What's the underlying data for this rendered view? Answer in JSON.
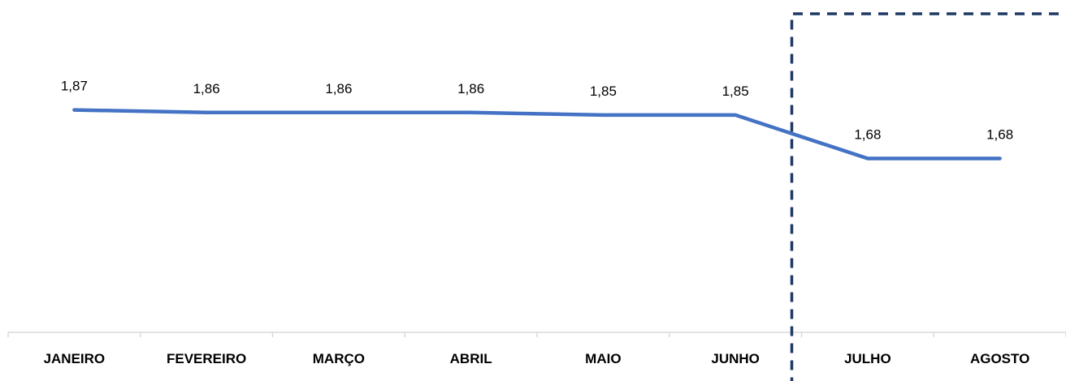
{
  "chart_data": {
    "type": "line",
    "title": "",
    "xlabel": "",
    "ylabel": "",
    "categories": [
      "JANEIRO",
      "FEVEREIRO",
      "MARÇO",
      "ABRIL",
      "MAIO",
      "JUNHO",
      "JULHO",
      "AGOSTO"
    ],
    "series": [
      {
        "values": [
          1.87,
          1.86,
          1.86,
          1.86,
          1.85,
          1.85,
          1.68,
          1.68
        ],
        "labels": [
          "1,87",
          "1,86",
          "1,86",
          "1,86",
          "1,85",
          "1,85",
          "1,68",
          "1,68"
        ]
      }
    ],
    "ylim": [
      1.0,
      2.3
    ],
    "grid": false,
    "legend": "none",
    "line_color": "#4472C4",
    "highlight_box": {
      "from_category": "JULHO",
      "to_category": "AGOSTO",
      "style": "dashed",
      "color": "#1F3864"
    }
  }
}
